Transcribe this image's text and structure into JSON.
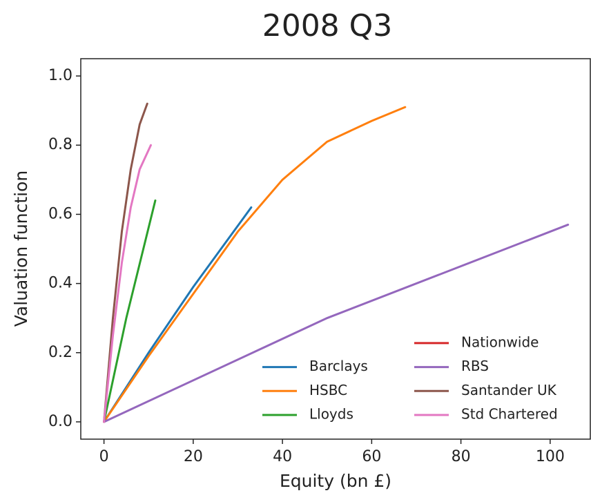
{
  "chart_data": {
    "type": "line",
    "title": "2008 Q3",
    "x_label": "Equity (bn £)",
    "y_label": "Valuation function",
    "xlim": [
      -5.2,
      109
    ],
    "ylim": [
      -0.05,
      1.05
    ],
    "xticks": [
      0,
      20,
      40,
      60,
      80,
      100
    ],
    "yticks": [
      {
        "value": 0,
        "label": "0.0"
      },
      {
        "value": 0.2,
        "label": "0.2"
      },
      {
        "value": 0.4,
        "label": "0.4"
      },
      {
        "value": 0.6,
        "label": "0.6"
      },
      {
        "value": 0.8,
        "label": "0.8"
      },
      {
        "value": 1,
        "label": "1.0"
      }
    ],
    "legend": "lower right",
    "series": [
      {
        "name": "Barclays",
        "color": "#1f77b4",
        "x": [
          0,
          10,
          20,
          33
        ],
        "values": [
          0,
          0.2,
          0.39,
          0.62
        ]
      },
      {
        "name": "HSBC",
        "color": "#ff7f0e",
        "x": [
          0,
          10,
          20,
          30,
          40,
          50,
          60,
          67.5
        ],
        "values": [
          0,
          0.19,
          0.37,
          0.55,
          0.7,
          0.81,
          0.87,
          0.91
        ]
      },
      {
        "name": "Lloyds",
        "color": "#2ca02c",
        "x": [
          0,
          5,
          11.5
        ],
        "values": [
          0,
          0.3,
          0.64
        ]
      },
      {
        "name": "Nationwide",
        "color": "#d62728",
        "x": [
          0
        ],
        "values": [
          0
        ]
      },
      {
        "name": "RBS",
        "color": "#9467bd",
        "x": [
          0,
          50,
          104
        ],
        "values": [
          0,
          0.3,
          0.57
        ]
      },
      {
        "name": "Santander UK",
        "color": "#8c564b",
        "x": [
          0,
          2,
          4,
          6,
          8,
          9.7
        ],
        "values": [
          0,
          0.3,
          0.55,
          0.73,
          0.86,
          0.92
        ]
      },
      {
        "name": "Std Chartered",
        "color": "#e377c2",
        "x": [
          0,
          2,
          4,
          6,
          8,
          10.5
        ],
        "values": [
          0,
          0.25,
          0.46,
          0.62,
          0.73,
          0.8
        ]
      }
    ]
  }
}
